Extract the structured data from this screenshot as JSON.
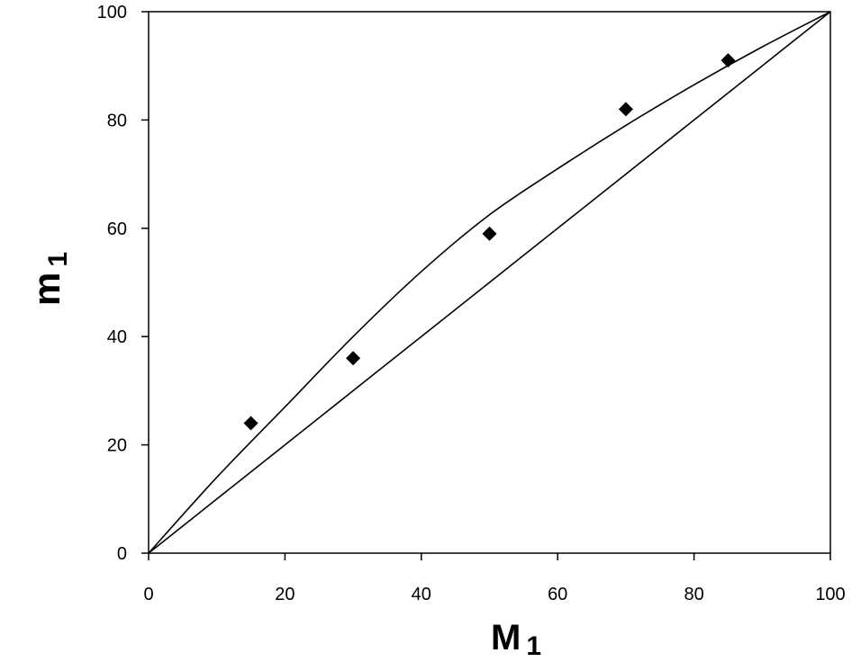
{
  "chart_data": {
    "type": "scatter",
    "title": "",
    "xlabel": "M",
    "xlabel_sub": "1",
    "ylabel": "m",
    "ylabel_sub": "1",
    "xlim": [
      0,
      100
    ],
    "ylim": [
      0,
      100
    ],
    "x_ticks": [
      0,
      20,
      40,
      60,
      80,
      100
    ],
    "y_ticks": [
      0,
      20,
      40,
      60,
      80,
      100
    ],
    "grid": false,
    "legend": "none",
    "points": {
      "marker": "diamond",
      "x": [
        15,
        30,
        50,
        70,
        85
      ],
      "y": [
        24,
        36,
        59,
        82,
        91
      ]
    },
    "lines": [
      {
        "x": [
          0,
          10,
          20,
          30,
          40,
          50,
          60,
          70,
          80,
          90,
          100
        ],
        "y": [
          0,
          10,
          20,
          30,
          40,
          50,
          60,
          70,
          80,
          90,
          100
        ]
      },
      {
        "x": [
          0,
          10,
          20,
          30,
          40,
          50,
          60,
          70,
          80,
          90,
          100
        ],
        "y": [
          0,
          14,
          27,
          40,
          52,
          62.5,
          71,
          79,
          86.5,
          93.5,
          100
        ]
      }
    ],
    "colors": {
      "line": "#000000",
      "marker": "#000000",
      "axis": "#000000"
    }
  }
}
